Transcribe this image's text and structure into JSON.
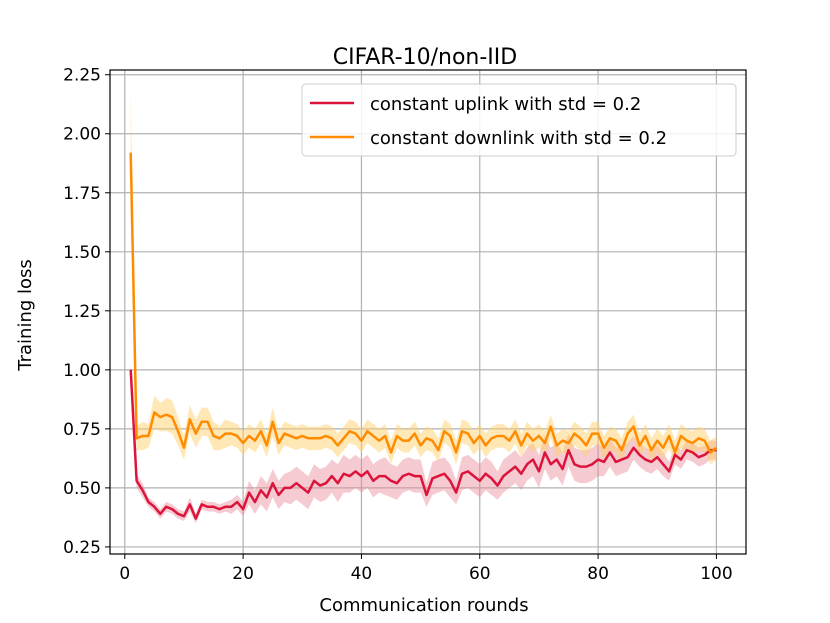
{
  "chart_data": {
    "type": "line",
    "title": "CIFAR-10/non-IID",
    "xlabel": "Communication rounds",
    "ylabel": "Training loss",
    "xlim": [
      -2.5,
      105
    ],
    "ylim": [
      0.22,
      2.27
    ],
    "xticks": [
      0,
      20,
      40,
      60,
      80,
      100
    ],
    "xtick_labels": [
      "0",
      "20",
      "40",
      "60",
      "80",
      "100"
    ],
    "yticks": [
      0.25,
      0.5,
      0.75,
      1.0,
      1.25,
      1.5,
      1.75,
      2.0,
      2.25
    ],
    "ytick_labels": [
      "0.25",
      "0.50",
      "0.75",
      "1.00",
      "1.25",
      "1.50",
      "1.75",
      "2.00",
      "2.25"
    ],
    "grid": true,
    "legend_position": "top-right",
    "series": [
      {
        "name": "constant uplink with std = 0.2",
        "color": "#dc143c",
        "band_color": "#e8899a",
        "band_opacity": 0.45,
        "values": [
          1.0,
          0.53,
          0.49,
          0.44,
          0.42,
          0.39,
          0.42,
          0.41,
          0.39,
          0.38,
          0.43,
          0.37,
          0.43,
          0.42,
          0.42,
          0.41,
          0.42,
          0.42,
          0.44,
          0.41,
          0.48,
          0.44,
          0.49,
          0.46,
          0.52,
          0.47,
          0.5,
          0.5,
          0.52,
          0.5,
          0.48,
          0.53,
          0.51,
          0.52,
          0.55,
          0.52,
          0.56,
          0.55,
          0.57,
          0.55,
          0.57,
          0.53,
          0.55,
          0.55,
          0.53,
          0.52,
          0.55,
          0.56,
          0.55,
          0.55,
          0.47,
          0.54,
          0.55,
          0.56,
          0.53,
          0.48,
          0.56,
          0.57,
          0.55,
          0.53,
          0.56,
          0.54,
          0.51,
          0.55,
          0.57,
          0.59,
          0.56,
          0.6,
          0.62,
          0.57,
          0.65,
          0.6,
          0.62,
          0.58,
          0.66,
          0.6,
          0.59,
          0.59,
          0.6,
          0.62,
          0.61,
          0.65,
          0.61,
          0.62,
          0.63,
          0.67,
          0.64,
          0.62,
          0.61,
          0.63,
          0.6,
          0.57,
          0.64,
          0.62,
          0.66,
          0.65,
          0.63,
          0.64,
          0.66,
          0.66
        ],
        "lower": [
          0.98,
          0.5,
          0.46,
          0.42,
          0.4,
          0.37,
          0.4,
          0.39,
          0.37,
          0.36,
          0.4,
          0.35,
          0.41,
          0.4,
          0.4,
          0.39,
          0.4,
          0.39,
          0.41,
          0.38,
          0.43,
          0.39,
          0.43,
          0.4,
          0.46,
          0.41,
          0.44,
          0.43,
          0.45,
          0.43,
          0.41,
          0.46,
          0.44,
          0.45,
          0.48,
          0.44,
          0.48,
          0.48,
          0.5,
          0.48,
          0.5,
          0.46,
          0.48,
          0.47,
          0.46,
          0.45,
          0.48,
          0.49,
          0.48,
          0.48,
          0.42,
          0.47,
          0.48,
          0.49,
          0.46,
          0.43,
          0.49,
          0.5,
          0.48,
          0.46,
          0.49,
          0.47,
          0.45,
          0.48,
          0.5,
          0.52,
          0.49,
          0.53,
          0.55,
          0.5,
          0.58,
          0.53,
          0.55,
          0.51,
          0.59,
          0.53,
          0.52,
          0.52,
          0.53,
          0.55,
          0.55,
          0.59,
          0.55,
          0.56,
          0.57,
          0.62,
          0.59,
          0.57,
          0.56,
          0.58,
          0.55,
          0.53,
          0.6,
          0.58,
          0.62,
          0.61,
          0.59,
          0.6,
          0.62,
          0.62
        ],
        "upper": [
          1.02,
          0.56,
          0.52,
          0.46,
          0.44,
          0.41,
          0.44,
          0.43,
          0.41,
          0.4,
          0.46,
          0.39,
          0.45,
          0.44,
          0.44,
          0.43,
          0.44,
          0.45,
          0.47,
          0.44,
          0.53,
          0.49,
          0.55,
          0.52,
          0.58,
          0.53,
          0.56,
          0.57,
          0.59,
          0.57,
          0.55,
          0.6,
          0.58,
          0.59,
          0.62,
          0.6,
          0.64,
          0.62,
          0.64,
          0.62,
          0.64,
          0.6,
          0.62,
          0.63,
          0.6,
          0.59,
          0.62,
          0.63,
          0.62,
          0.62,
          0.52,
          0.61,
          0.62,
          0.63,
          0.6,
          0.53,
          0.63,
          0.64,
          0.62,
          0.6,
          0.63,
          0.61,
          0.57,
          0.62,
          0.64,
          0.66,
          0.63,
          0.67,
          0.69,
          0.64,
          0.72,
          0.67,
          0.69,
          0.65,
          0.73,
          0.67,
          0.66,
          0.66,
          0.67,
          0.69,
          0.67,
          0.71,
          0.67,
          0.68,
          0.69,
          0.72,
          0.69,
          0.67,
          0.66,
          0.68,
          0.65,
          0.61,
          0.68,
          0.66,
          0.7,
          0.69,
          0.67,
          0.68,
          0.7,
          0.7
        ]
      },
      {
        "name": "constant downlink with std = 0.2",
        "color": "#ff8c00",
        "band_color": "#ffcf6e",
        "band_opacity": 0.5,
        "values": [
          1.92,
          0.71,
          0.72,
          0.72,
          0.82,
          0.8,
          0.81,
          0.8,
          0.74,
          0.67,
          0.79,
          0.73,
          0.78,
          0.78,
          0.72,
          0.71,
          0.73,
          0.73,
          0.72,
          0.69,
          0.72,
          0.7,
          0.74,
          0.68,
          0.78,
          0.69,
          0.73,
          0.72,
          0.71,
          0.72,
          0.71,
          0.71,
          0.71,
          0.72,
          0.71,
          0.68,
          0.71,
          0.74,
          0.73,
          0.7,
          0.74,
          0.72,
          0.7,
          0.72,
          0.65,
          0.72,
          0.7,
          0.7,
          0.73,
          0.68,
          0.71,
          0.7,
          0.66,
          0.74,
          0.72,
          0.65,
          0.74,
          0.73,
          0.69,
          0.72,
          0.68,
          0.71,
          0.72,
          0.72,
          0.7,
          0.74,
          0.68,
          0.73,
          0.7,
          0.72,
          0.69,
          0.76,
          0.68,
          0.7,
          0.69,
          0.73,
          0.71,
          0.68,
          0.73,
          0.73,
          0.67,
          0.71,
          0.7,
          0.66,
          0.73,
          0.76,
          0.68,
          0.72,
          0.66,
          0.7,
          0.67,
          0.72,
          0.65,
          0.72,
          0.7,
          0.69,
          0.71,
          0.7,
          0.65,
          0.67
        ],
        "lower": [
          1.66,
          0.66,
          0.66,
          0.67,
          0.75,
          0.74,
          0.74,
          0.73,
          0.68,
          0.62,
          0.73,
          0.67,
          0.72,
          0.72,
          0.66,
          0.66,
          0.67,
          0.68,
          0.67,
          0.64,
          0.67,
          0.65,
          0.69,
          0.63,
          0.72,
          0.64,
          0.68,
          0.67,
          0.66,
          0.67,
          0.66,
          0.66,
          0.66,
          0.67,
          0.66,
          0.63,
          0.66,
          0.69,
          0.68,
          0.65,
          0.69,
          0.67,
          0.65,
          0.67,
          0.6,
          0.67,
          0.65,
          0.65,
          0.68,
          0.63,
          0.66,
          0.65,
          0.61,
          0.69,
          0.67,
          0.6,
          0.69,
          0.68,
          0.64,
          0.67,
          0.63,
          0.66,
          0.67,
          0.67,
          0.65,
          0.69,
          0.63,
          0.68,
          0.65,
          0.67,
          0.64,
          0.71,
          0.63,
          0.65,
          0.64,
          0.68,
          0.66,
          0.63,
          0.68,
          0.68,
          0.62,
          0.66,
          0.65,
          0.61,
          0.68,
          0.71,
          0.63,
          0.67,
          0.61,
          0.65,
          0.62,
          0.67,
          0.6,
          0.67,
          0.65,
          0.64,
          0.66,
          0.65,
          0.6,
          0.62
        ],
        "upper": [
          2.18,
          0.76,
          0.78,
          0.77,
          0.89,
          0.86,
          0.88,
          0.87,
          0.8,
          0.72,
          0.85,
          0.79,
          0.84,
          0.84,
          0.78,
          0.76,
          0.79,
          0.78,
          0.77,
          0.74,
          0.77,
          0.75,
          0.79,
          0.73,
          0.84,
          0.74,
          0.78,
          0.77,
          0.76,
          0.77,
          0.76,
          0.76,
          0.76,
          0.77,
          0.76,
          0.73,
          0.76,
          0.79,
          0.78,
          0.75,
          0.79,
          0.77,
          0.75,
          0.77,
          0.7,
          0.77,
          0.75,
          0.75,
          0.78,
          0.73,
          0.76,
          0.75,
          0.71,
          0.79,
          0.77,
          0.7,
          0.79,
          0.78,
          0.74,
          0.77,
          0.73,
          0.76,
          0.77,
          0.77,
          0.75,
          0.79,
          0.73,
          0.78,
          0.75,
          0.77,
          0.74,
          0.81,
          0.73,
          0.75,
          0.74,
          0.78,
          0.76,
          0.73,
          0.78,
          0.78,
          0.72,
          0.76,
          0.75,
          0.71,
          0.78,
          0.81,
          0.73,
          0.77,
          0.71,
          0.75,
          0.72,
          0.77,
          0.7,
          0.77,
          0.75,
          0.74,
          0.76,
          0.75,
          0.7,
          0.72
        ]
      }
    ]
  }
}
